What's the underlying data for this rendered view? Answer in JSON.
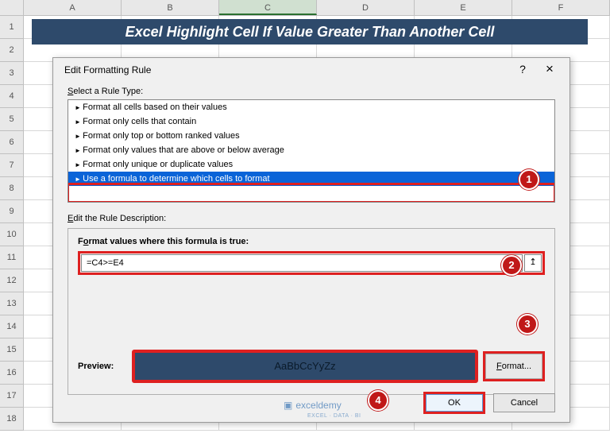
{
  "columns": [
    "A",
    "B",
    "C",
    "D",
    "E",
    "F"
  ],
  "selected_column_index": 2,
  "row_count": 18,
  "banner": {
    "text": "Excel Highlight Cell If Value Greater Than Another Cell",
    "bg_color": "#2e4a6b",
    "text_color": "#ffffff"
  },
  "dialog": {
    "title": "Edit Formatting Rule",
    "help_symbol": "?",
    "close_symbol": "×",
    "select_rule_label": "Select a Rule Type:",
    "rule_types": [
      "Format all cells based on their values",
      "Format only cells that contain",
      "Format only top or bottom ranked values",
      "Format only values that are above or below average",
      "Format only unique or duplicate values",
      "Use a formula to determine which cells to format"
    ],
    "selected_rule_index": 5,
    "edit_desc_label": "Edit the Rule Description:",
    "formula_label": "Format values where this formula is true:",
    "formula_value": "=C4>=E4",
    "ref_button_glyph": "↥",
    "preview_label": "Preview:",
    "preview_text": "AaBbCcYyZz",
    "preview_bg": "#2e4a6b",
    "format_button": "Format...",
    "ok_button": "OK",
    "cancel_button": "Cancel"
  },
  "watermark": {
    "icon": "▣",
    "brand": "exceldemy",
    "tagline": "EXCEL · DATA · BI"
  },
  "badges": {
    "b1": "1",
    "b2": "2",
    "b3": "3",
    "b4": "4"
  },
  "colors": {
    "highlight": "#de2020",
    "selection": "#0a64d8"
  }
}
